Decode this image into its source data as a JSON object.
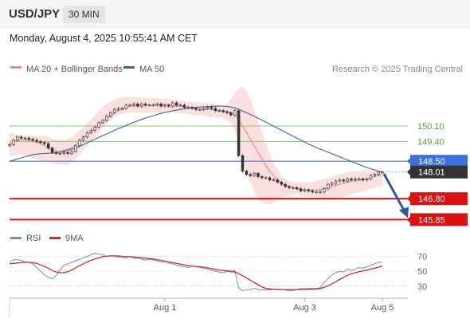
{
  "header": {
    "symbol": "USD/JPY",
    "timeframe": "30 MIN",
    "datetime": "Monday, August 4, 2025 10:55:41 AM CET",
    "credit": "Research © 2025 Trading Central"
  },
  "colors": {
    "candle_up": "#e7e7e7",
    "candle_down": "#333333",
    "ma20": "#e88a8a",
    "bollinger_fill": "#fbd6d6",
    "ma50": "#3d6595",
    "rsi": "#6e8fd6",
    "rsi_ma": "#d42a2a",
    "level_red": "#dd1111",
    "level_green": "#8dc76a",
    "level_blue": "#6a8ed8",
    "current_label": "#333333"
  },
  "chart_data": [
    {
      "type": "candlestick",
      "title": "USD/JPY",
      "legend": [
        {
          "name": "MA 20 + Bollinger Bands",
          "color": "#e88a8a"
        },
        {
          "name": "MA 50",
          "color": "#3d6595"
        }
      ],
      "legend_placement": "top-left",
      "x_ticks": [
        {
          "label": "Aug 1",
          "index": 40
        },
        {
          "label": "Aug 3",
          "index": 76
        },
        {
          "label": "Aug 5",
          "index": 96
        }
      ],
      "ylim": [
        145.5,
        152.2
      ],
      "close": [
        149.25,
        149.45,
        149.6,
        149.55,
        149.55,
        149.5,
        149.45,
        149.4,
        149.35,
        149.3,
        149.1,
        148.9,
        148.85,
        148.85,
        148.9,
        148.85,
        148.95,
        149.2,
        149.45,
        149.6,
        149.8,
        149.9,
        150.05,
        150.25,
        150.35,
        150.55,
        150.7,
        150.85,
        150.9,
        150.9,
        151.05,
        151.05,
        151.1,
        151.0,
        151.1,
        151.05,
        151.05,
        151.05,
        151.1,
        151.0,
        151.05,
        151.0,
        151.15,
        151.05,
        151.05,
        150.95,
        150.95,
        150.9,
        150.85,
        150.85,
        150.9,
        150.95,
        150.9,
        150.8,
        150.8,
        150.75,
        150.7,
        150.6,
        150.8,
        148.75,
        148.05,
        147.9,
        147.85,
        147.95,
        147.8,
        147.75,
        147.75,
        147.65,
        147.65,
        147.55,
        147.45,
        147.35,
        147.3,
        147.3,
        147.25,
        147.15,
        147.2,
        147.15,
        147.1,
        147.1,
        147.1,
        147.25,
        147.45,
        147.5,
        147.6,
        147.65,
        147.6,
        147.7,
        147.65,
        147.7,
        147.7,
        147.65,
        147.7,
        147.85,
        147.9,
        148.0,
        148.0
      ],
      "ma20": [
        149.25,
        149.4,
        149.45,
        149.5,
        149.5,
        149.45,
        149.4,
        149.35,
        149.3,
        149.2,
        149.1,
        149.0,
        148.95,
        148.95,
        149.0,
        149.05,
        149.1,
        149.25,
        149.4,
        149.55,
        149.7,
        149.85,
        150.0,
        150.15,
        150.3,
        150.45,
        150.55,
        150.7,
        150.8,
        150.85,
        150.95,
        151.0,
        151.0,
        151.0,
        151.05,
        151.05,
        151.05,
        151.05,
        151.05,
        151.05,
        151.05,
        151.05,
        151.05,
        151.0,
        151.0,
        150.95,
        150.95,
        150.9,
        150.9,
        150.85,
        150.85,
        150.85,
        150.85,
        150.8,
        150.8,
        150.75,
        150.75,
        150.7,
        150.65,
        150.4,
        150.1,
        149.8,
        149.5,
        149.2,
        148.9,
        148.6,
        148.3,
        148.05,
        147.85,
        147.65,
        147.5,
        147.4,
        147.35,
        147.3,
        147.25,
        147.2,
        147.2,
        147.2,
        147.2,
        147.2,
        147.2,
        147.25,
        147.3,
        147.35,
        147.4,
        147.45,
        147.5,
        147.55,
        147.6,
        147.6,
        147.65,
        147.65,
        147.7,
        147.75,
        147.8,
        147.85,
        147.9
      ],
      "ma50": [
        148.5,
        148.55,
        148.6,
        148.65,
        148.7,
        148.75,
        148.8,
        148.82,
        148.84,
        148.85,
        148.86,
        148.87,
        148.88,
        148.9,
        148.95,
        149.0,
        149.05,
        149.1,
        149.18,
        149.26,
        149.34,
        149.42,
        149.5,
        149.58,
        149.66,
        149.74,
        149.82,
        149.9,
        149.98,
        150.05,
        150.12,
        150.2,
        150.27,
        150.33,
        150.4,
        150.46,
        150.52,
        150.57,
        150.62,
        150.67,
        150.71,
        150.75,
        150.79,
        150.82,
        150.85,
        150.88,
        150.9,
        150.92,
        150.94,
        150.96,
        150.97,
        150.98,
        150.99,
        151.0,
        151.0,
        151.0,
        150.98,
        150.96,
        150.92,
        150.86,
        150.78,
        150.7,
        150.62,
        150.54,
        150.45,
        150.36,
        150.27,
        150.18,
        150.09,
        150.0,
        149.91,
        149.82,
        149.73,
        149.64,
        149.55,
        149.46,
        149.37,
        149.28,
        149.2,
        149.12,
        149.05,
        148.98,
        148.91,
        148.84,
        148.77,
        148.7,
        148.63,
        148.56,
        148.49,
        148.42,
        148.35,
        148.28,
        148.22,
        148.16,
        148.1,
        148.05,
        148.01
      ],
      "bollinger_upper": [
        149.8,
        149.75,
        149.7,
        149.65,
        149.65,
        149.65,
        149.65,
        149.65,
        149.65,
        149.65,
        149.6,
        149.55,
        149.5,
        149.45,
        149.45,
        149.5,
        149.6,
        149.75,
        149.9,
        150.05,
        150.25,
        150.4,
        150.6,
        150.8,
        150.95,
        151.1,
        151.2,
        151.3,
        151.35,
        151.4,
        151.42,
        151.42,
        151.42,
        151.4,
        151.4,
        151.38,
        151.38,
        151.38,
        151.36,
        151.35,
        151.34,
        151.32,
        151.3,
        151.28,
        151.26,
        151.24,
        151.22,
        151.2,
        151.18,
        151.16,
        151.14,
        151.12,
        151.1,
        151.08,
        151.06,
        151.04,
        151.1,
        151.3,
        151.6,
        151.8,
        151.9,
        151.7,
        151.3,
        150.8,
        150.3,
        149.8,
        149.3,
        148.8,
        148.4,
        148.1,
        147.85,
        147.7,
        147.6,
        147.55,
        147.55,
        147.55,
        147.55,
        147.55,
        147.55,
        147.6,
        147.65,
        147.7,
        147.75,
        147.8,
        147.85,
        147.9,
        147.95,
        148.0,
        148.05,
        148.05,
        148.05,
        148.05,
        148.05,
        148.05,
        148.05,
        148.05,
        148.05
      ],
      "bollinger_lower": [
        148.7,
        148.75,
        148.8,
        148.8,
        148.75,
        148.7,
        148.65,
        148.6,
        148.55,
        148.5,
        148.45,
        148.4,
        148.35,
        148.35,
        148.35,
        148.35,
        148.45,
        148.6,
        148.8,
        149.0,
        149.2,
        149.4,
        149.6,
        149.8,
        150.0,
        150.2,
        150.4,
        150.5,
        150.6,
        150.65,
        150.7,
        150.7,
        150.7,
        150.7,
        150.7,
        150.7,
        150.7,
        150.7,
        150.7,
        150.7,
        150.7,
        150.7,
        150.7,
        150.7,
        150.68,
        150.66,
        150.64,
        150.62,
        150.6,
        150.58,
        150.56,
        150.54,
        150.52,
        150.5,
        150.48,
        150.46,
        150.4,
        150.2,
        149.9,
        149.3,
        148.6,
        148.0,
        147.5,
        147.1,
        146.8,
        146.6,
        146.55,
        146.55,
        146.6,
        146.75,
        146.85,
        146.9,
        146.95,
        147.0,
        147.0,
        146.95,
        146.9,
        146.9,
        146.9,
        146.85,
        146.85,
        146.85,
        146.85,
        146.85,
        146.85,
        146.85,
        146.9,
        146.95,
        147.0,
        147.05,
        147.1,
        147.15,
        147.2,
        147.25,
        147.3,
        147.35,
        147.4
      ],
      "levels": [
        {
          "value": 150.1,
          "label": "150.10",
          "style": "green-line"
        },
        {
          "value": 149.4,
          "label": "149.40",
          "style": "green-line"
        },
        {
          "value": 148.5,
          "label": "148.50",
          "style": "pivot"
        },
        {
          "value": 148.01,
          "label": "148.01",
          "style": "current"
        },
        {
          "value": 146.8,
          "label": "146.80",
          "style": "target"
        },
        {
          "value": 145.85,
          "label": "145.85",
          "style": "target"
        }
      ],
      "forecast_arrow": {
        "from": 148.0,
        "to": 145.85,
        "direction": "down"
      }
    },
    {
      "type": "line",
      "title": "RSI",
      "legend": [
        {
          "name": "RSI",
          "color": "#6e8fd6"
        },
        {
          "name": "9MA",
          "color": "#d42a2a"
        }
      ],
      "legend_placement": "top-left",
      "ylim": [
        15,
        80
      ],
      "y_ticks": [
        70,
        50,
        30
      ],
      "series": [
        {
          "name": "RSI",
          "values": [
            62,
            65,
            66,
            64,
            63,
            62,
            60,
            55,
            50,
            45,
            42,
            40,
            44,
            52,
            58,
            60,
            62,
            64,
            66,
            68,
            70,
            72,
            74,
            73,
            72,
            70,
            71,
            70,
            69,
            68,
            68,
            70,
            67,
            68,
            66,
            65,
            66,
            65,
            64,
            62,
            63,
            61,
            60,
            58,
            57,
            56,
            55,
            57,
            56,
            55,
            54,
            53,
            51,
            50,
            49,
            48,
            50,
            49,
            51,
            28,
            24,
            25,
            26,
            27,
            26,
            25,
            25,
            25,
            26,
            26,
            26,
            25,
            24,
            24,
            26,
            27,
            27,
            27,
            27,
            27,
            28,
            35,
            40,
            45,
            48,
            50,
            49,
            53,
            51,
            53,
            55,
            54,
            56,
            58,
            60,
            62,
            62
          ]
        },
        {
          "name": "9MA",
          "values": [
            60,
            60.5,
            61,
            61.5,
            62,
            62,
            61.5,
            60.5,
            58.5,
            56.5,
            54,
            51,
            49,
            48,
            48,
            49.5,
            51.5,
            54.5,
            57.5,
            60,
            62.5,
            64.5,
            66.5,
            68,
            69.5,
            70,
            70.5,
            70.5,
            70.5,
            70,
            69.5,
            69.5,
            69,
            68.5,
            68,
            67.5,
            67,
            66.5,
            65.5,
            64.5,
            63.5,
            62.5,
            61.5,
            60.5,
            59.5,
            58.5,
            57.5,
            57,
            56.5,
            56,
            55.5,
            54.5,
            53.5,
            52.5,
            51.5,
            51,
            50.5,
            50,
            49,
            47,
            44,
            41,
            38,
            35,
            32,
            29,
            27,
            26.5,
            26,
            25.5,
            25.5,
            25.5,
            25.5,
            25.5,
            25.5,
            25.5,
            25.5,
            26,
            26,
            26.5,
            27,
            28.5,
            30.5,
            33,
            36,
            39,
            42,
            44.5,
            46.5,
            48,
            49.5,
            50.5,
            51.5,
            53,
            54,
            55.5,
            57
          ]
        }
      ],
      "x_ticks": [
        {
          "label": "Aug 1",
          "index": 40
        },
        {
          "label": "Aug 3",
          "index": 76
        },
        {
          "label": "Aug 5",
          "index": 96
        }
      ]
    }
  ]
}
